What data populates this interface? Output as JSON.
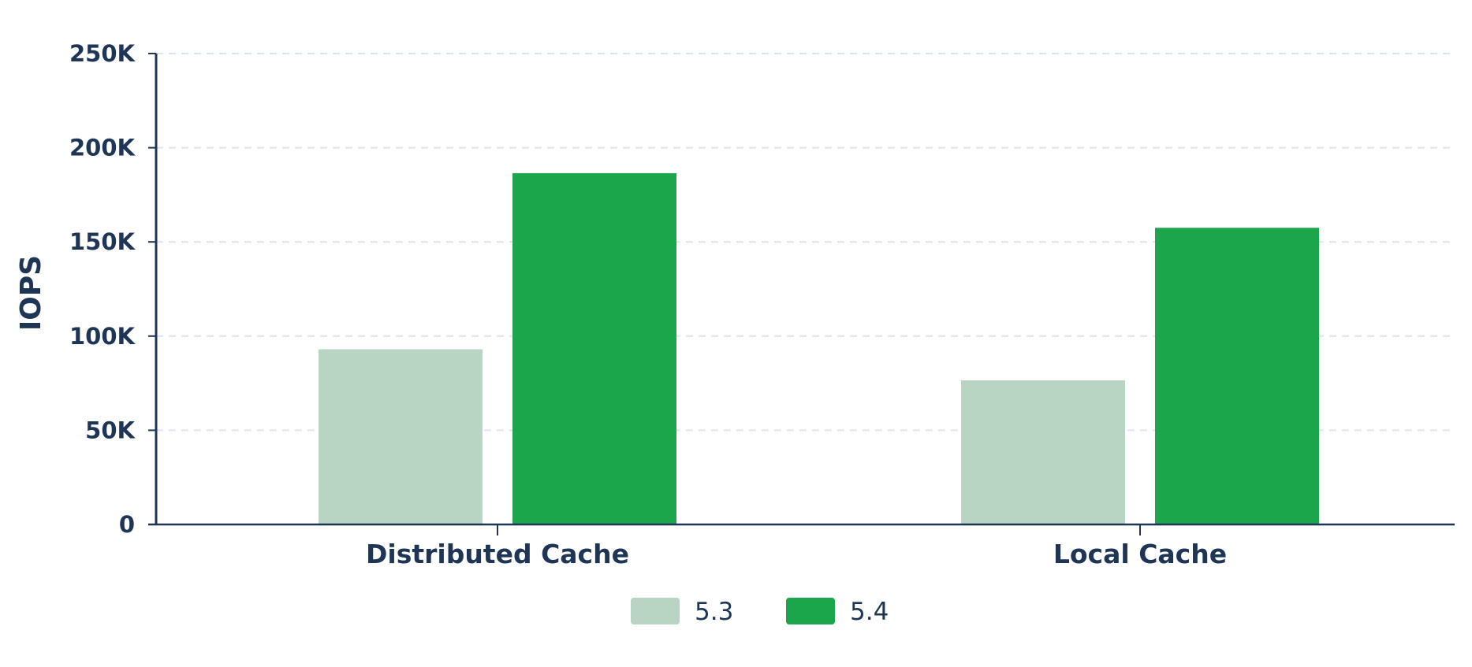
{
  "chart_data": {
    "type": "bar",
    "title": "",
    "xlabel": "",
    "ylabel": "IOPS",
    "ylim": [
      0,
      250000
    ],
    "y_ticks": [
      0,
      50000,
      100000,
      150000,
      200000,
      250000
    ],
    "y_tick_labels": [
      "0",
      "50K",
      "100K",
      "150K",
      "200K",
      "250K"
    ],
    "categories": [
      "Distributed Cache",
      "Local Cache"
    ],
    "series": [
      {
        "name": "5.3",
        "color": "#b8d4c2",
        "values": [
          93000,
          76500
        ]
      },
      {
        "name": "5.4",
        "color": "#1ba64c",
        "values": [
          186500,
          157500
        ]
      }
    ],
    "grid": "horizontal dashed",
    "legend_position": "bottom-center",
    "axis_color": "#1f3556",
    "grid_color": "#dfe5ef"
  }
}
